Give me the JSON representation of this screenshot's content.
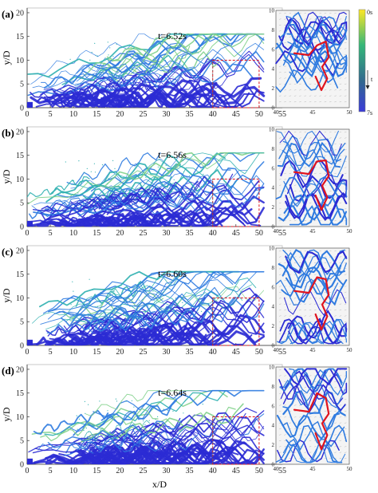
{
  "figure": {
    "xlabel": "x/D",
    "ylabel": "y/D",
    "x_ticks": [
      "0",
      "5",
      "10",
      "15",
      "20",
      "25",
      "30",
      "35",
      "40",
      "45",
      "50",
      "55"
    ],
    "y_ticks": [
      "0",
      "5",
      "10",
      "15",
      "20"
    ],
    "inset_x_ticks": [
      "40",
      "45",
      "50"
    ],
    "inset_y_ticks": [
      "0",
      "2",
      "4",
      "6",
      "8",
      "10"
    ],
    "colorbar": {
      "top_label": "0s",
      "bottom_label": "7s",
      "arrow_label": "t",
      "colors": [
        "#fde725",
        "#35b779",
        "#31688e",
        "#3b3bd9"
      ]
    },
    "colors": {
      "streak_dark": "#2b2bd4",
      "streak_mid": "#2f7be0",
      "streak_light": "#2fb0b0",
      "streak_old": "#7fd08a",
      "vortex": "#e0141e",
      "box": "#e0141e"
    },
    "panels": [
      {
        "letter": "(a)",
        "time": "t=6.52s"
      },
      {
        "letter": "(b)",
        "time": "t=6.56s"
      },
      {
        "letter": "(c)",
        "time": "t=6.60s"
      },
      {
        "letter": "(d)",
        "time": "t=6.64s"
      }
    ]
  }
}
